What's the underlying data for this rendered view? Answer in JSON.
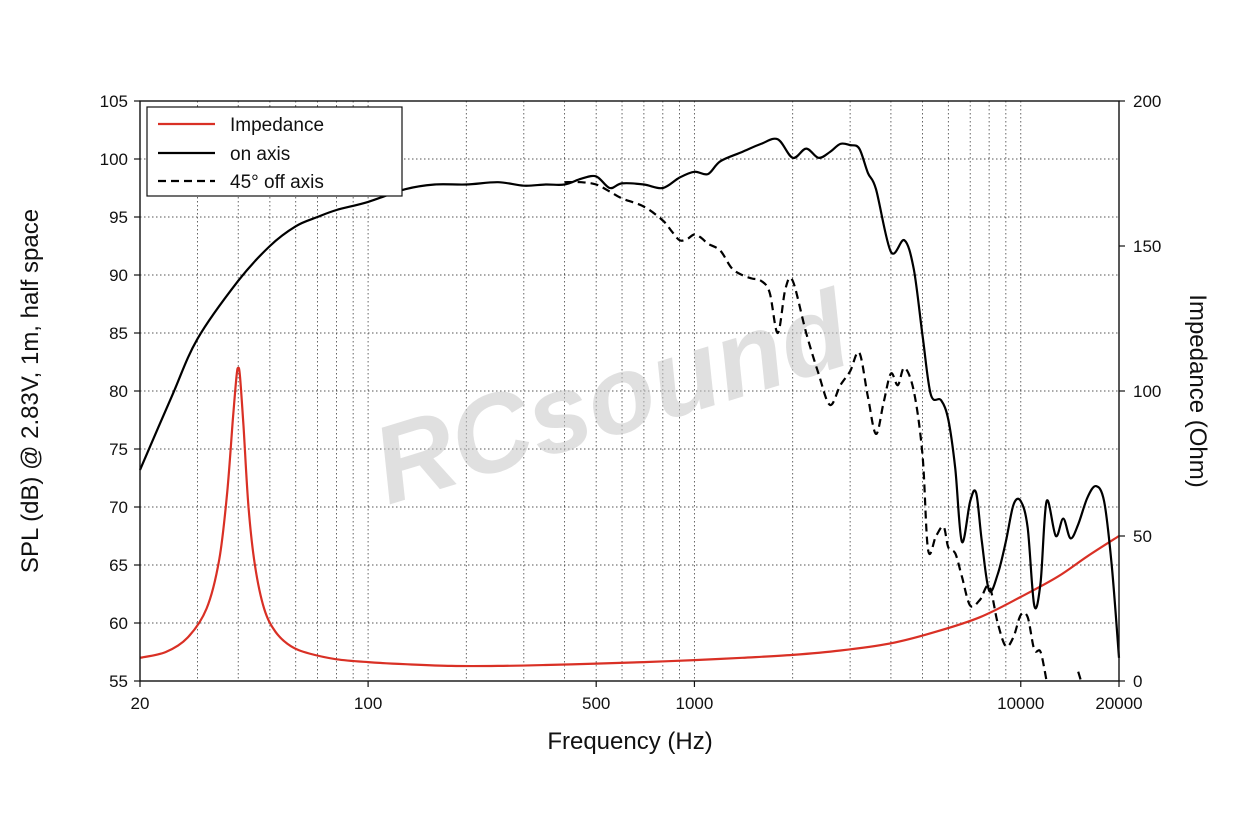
{
  "watermark": "RCsound",
  "chart_data": {
    "type": "line",
    "xlabel": "Frequency (Hz)",
    "ylabel": "SPL (dB) @ 2.83V, 1m, half space",
    "y2label": "Impedance (Ohm)",
    "xscale": "log",
    "xlim": [
      20,
      20000
    ],
    "ylim": [
      55,
      105
    ],
    "y2lim": [
      0,
      200
    ],
    "xticks": [
      20,
      100,
      500,
      1000,
      10000,
      20000
    ],
    "xtick_labels": [
      "20",
      "100",
      "500",
      "1000",
      "10000",
      "20000"
    ],
    "yticks": [
      55,
      60,
      65,
      70,
      75,
      80,
      85,
      90,
      95,
      100,
      105
    ],
    "y2ticks": [
      0,
      50,
      100,
      150,
      200
    ],
    "grid": true,
    "legend_position": "top-left",
    "series": [
      {
        "name": "Impedance",
        "axis": "right",
        "color": "#d93025",
        "style": "solid",
        "x": [
          20,
          24,
          28,
          32,
          35,
          37,
          38.5,
          39.5,
          40,
          40.5,
          41.5,
          43,
          45,
          48,
          52,
          58,
          66,
          80,
          100,
          130,
          180,
          250,
          350,
          500,
          700,
          1000,
          1400,
          2000,
          2800,
          4000,
          5500,
          7500,
          10000,
          13000,
          16000,
          20000
        ],
        "values": [
          8,
          10,
          15,
          25,
          42,
          65,
          90,
          105,
          108,
          105,
          88,
          60,
          40,
          25,
          17,
          12,
          9.5,
          7.5,
          6.5,
          5.8,
          5.2,
          5.2,
          5.5,
          6,
          6.5,
          7.2,
          8,
          9,
          10.5,
          13,
          17,
          22,
          29,
          36,
          43,
          50
        ]
      },
      {
        "name": "on axis",
        "axis": "left",
        "color": "#000000",
        "style": "solid",
        "x": [
          20,
          25,
          30,
          40,
          50,
          60,
          70,
          80,
          100,
          130,
          160,
          200,
          250,
          300,
          350,
          400,
          450,
          500,
          550,
          600,
          700,
          800,
          900,
          1000,
          1100,
          1200,
          1400,
          1600,
          1800,
          2000,
          2200,
          2400,
          2600,
          2800,
          3000,
          3200,
          3400,
          3600,
          4000,
          4400,
          4700,
          5000,
          5300,
          5700,
          6000,
          6300,
          6600,
          7000,
          7300,
          7600,
          8000,
          8500,
          9000,
          9500,
          10000,
          10500,
          11000,
          11500,
          12000,
          12800,
          13500,
          14200,
          15000,
          16000,
          17000,
          18000,
          19000,
          20000
        ],
        "values": [
          73.2,
          79.5,
          84.5,
          89.5,
          92.5,
          94.2,
          95,
          95.6,
          96.3,
          97.4,
          97.8,
          97.8,
          98,
          97.7,
          97.8,
          97.8,
          98.3,
          98.5,
          97.5,
          97.9,
          97.8,
          97.5,
          98.4,
          98.9,
          98.7,
          99.8,
          100.6,
          101.3,
          101.7,
          100.1,
          100.9,
          100.1,
          100.6,
          101.3,
          101.2,
          100.9,
          98.8,
          97.4,
          92,
          93,
          90.5,
          84.8,
          79.7,
          79.2,
          77.5,
          73.3,
          67,
          70.5,
          71.2,
          67,
          62.8,
          64.2,
          67,
          70.2,
          70.5,
          68.2,
          61.5,
          63.5,
          70.5,
          67.5,
          69,
          67.3,
          68.5,
          70.8,
          71.8,
          70.5,
          65,
          57
        ]
      },
      {
        "name": "45° off axis",
        "axis": "left",
        "color": "#000000",
        "style": "dashed",
        "x": [
          400,
          450,
          500,
          550,
          600,
          700,
          800,
          850,
          900,
          950,
          1000,
          1050,
          1100,
          1200,
          1300,
          1400,
          1500,
          1600,
          1700,
          1800,
          1900,
          2000,
          2200,
          2400,
          2600,
          2800,
          3000,
          3200,
          3400,
          3600,
          3800,
          4000,
          4200,
          4400,
          4700,
          5000,
          5200,
          5500,
          5800,
          6000,
          6300,
          6600,
          7000,
          7500,
          8000,
          8500,
          9000,
          9500,
          10000,
          10500,
          11000,
          11500,
          12000
        ],
        "values": [
          98,
          98,
          97.8,
          97.2,
          96.6,
          95.9,
          94.7,
          93.8,
          93,
          93.1,
          93.5,
          93.2,
          92.7,
          92.1,
          90.6,
          90,
          89.7,
          89.5,
          88.5,
          85,
          88.8,
          89.5,
          85,
          81.5,
          78.8,
          80.5,
          81.7,
          83.3,
          79.5,
          76.3,
          79,
          81.5,
          80.5,
          82,
          80,
          74.5,
          66.3,
          67.5,
          68.3,
          66.5,
          66,
          64,
          61.5,
          62,
          63.2,
          60,
          58,
          58.8,
          60.7,
          60.5,
          57.7,
          57.5,
          55
        ]
      },
      {
        "name": "",
        "axis": "left",
        "color": "#000000",
        "style": "dashed",
        "x": [
          15000,
          15300
        ],
        "values": [
          55.8,
          55
        ]
      }
    ]
  }
}
